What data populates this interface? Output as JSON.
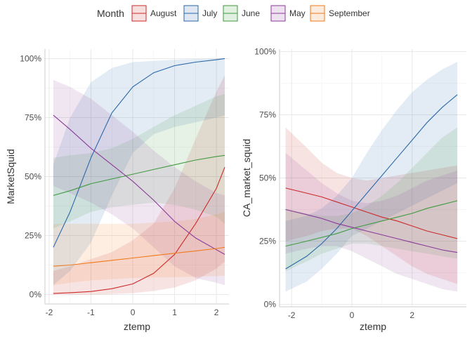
{
  "legend": {
    "title": "Month",
    "entries": [
      {
        "name": "August",
        "color": "#cc2a2a"
      },
      {
        "name": "July",
        "color": "#2a68a8"
      },
      {
        "name": "June",
        "color": "#3f9a3f"
      },
      {
        "name": "May",
        "color": "#8a3b9a"
      },
      {
        "name": "September",
        "color": "#f07a1a"
      }
    ]
  },
  "chart_data": [
    {
      "type": "line",
      "xlabel": "ztemp",
      "ylabel": "MarketSquid",
      "xlim": [
        -2.1,
        2.3
      ],
      "ylim": [
        -0.04,
        1.04
      ],
      "xticks": [
        -2,
        -1,
        0,
        1,
        2
      ],
      "xtick_labels": [
        "-2",
        "-1",
        "0",
        "1",
        "2"
      ],
      "yticks": [
        0,
        0.25,
        0.5,
        0.75,
        1.0
      ],
      "ytick_labels": [
        "0%",
        "25%",
        "50%",
        "75%",
        "100%"
      ],
      "grid": true,
      "x": [
        -1.9,
        -1.5,
        -1.0,
        -0.5,
        0.0,
        0.5,
        1.0,
        1.5,
        2.0,
        2.2
      ],
      "series": [
        {
          "name": "August",
          "color": "#cc2a2a",
          "values": [
            0.005,
            0.008,
            0.013,
            0.025,
            0.045,
            0.09,
            0.17,
            0.3,
            0.45,
            0.54
          ],
          "lower": [
            0.0,
            0.0,
            0.0,
            0.002,
            0.006,
            0.015,
            0.03,
            0.06,
            0.11,
            0.14
          ],
          "upper": [
            0.1,
            0.12,
            0.15,
            0.18,
            0.23,
            0.3,
            0.45,
            0.66,
            0.86,
            0.93
          ]
        },
        {
          "name": "July",
          "color": "#2a68a8",
          "values": [
            0.2,
            0.35,
            0.58,
            0.77,
            0.88,
            0.94,
            0.97,
            0.985,
            0.995,
            1.0
          ],
          "lower": [
            0.04,
            0.1,
            0.22,
            0.42,
            0.6,
            0.68,
            0.71,
            0.73,
            0.75,
            0.76
          ],
          "upper": [
            0.55,
            0.75,
            0.9,
            0.96,
            0.985,
            0.99,
            0.995,
            0.998,
            1.0,
            1.0
          ]
        },
        {
          "name": "June",
          "color": "#3f9a3f",
          "values": [
            0.42,
            0.44,
            0.47,
            0.49,
            0.51,
            0.53,
            0.55,
            0.57,
            0.585,
            0.59
          ],
          "lower": [
            0.28,
            0.31,
            0.35,
            0.37,
            0.38,
            0.39,
            0.38,
            0.36,
            0.33,
            0.3
          ],
          "upper": [
            0.58,
            0.59,
            0.6,
            0.62,
            0.66,
            0.71,
            0.76,
            0.8,
            0.84,
            0.85
          ]
        },
        {
          "name": "May",
          "color": "#8a3b9a",
          "values": [
            0.76,
            0.7,
            0.62,
            0.55,
            0.48,
            0.4,
            0.31,
            0.24,
            0.19,
            0.17
          ],
          "lower": [
            0.46,
            0.43,
            0.39,
            0.34,
            0.28,
            0.2,
            0.12,
            0.07,
            0.05,
            0.04
          ],
          "upper": [
            0.91,
            0.88,
            0.83,
            0.76,
            0.69,
            0.61,
            0.54,
            0.48,
            0.43,
            0.42
          ]
        },
        {
          "name": "September",
          "color": "#f07a1a",
          "values": [
            0.12,
            0.125,
            0.135,
            0.145,
            0.155,
            0.165,
            0.175,
            0.185,
            0.195,
            0.2
          ],
          "lower": [
            0.04,
            0.05,
            0.06,
            0.065,
            0.07,
            0.072,
            0.074,
            0.076,
            0.078,
            0.08
          ],
          "upper": [
            0.3,
            0.3,
            0.3,
            0.3,
            0.3,
            0.305,
            0.31,
            0.32,
            0.34,
            0.35
          ]
        }
      ]
    },
    {
      "type": "line",
      "xlabel": "ztemp",
      "ylabel": "CA_market_squid",
      "xlim": [
        -2.4,
        3.8
      ],
      "ylim": [
        -0.01,
        1.01
      ],
      "xticks": [
        -2,
        0,
        2
      ],
      "xtick_labels": [
        "-2",
        "0",
        "2"
      ],
      "yticks": [
        0,
        0.25,
        0.5,
        0.75,
        1.0
      ],
      "ytick_labels": [
        "0%",
        "25%",
        "50%",
        "75%",
        "100%"
      ],
      "grid": true,
      "x": [
        -2.2,
        -1.5,
        -1.0,
        -0.5,
        0.0,
        0.5,
        1.0,
        1.5,
        2.0,
        2.5,
        3.0,
        3.5
      ],
      "series": [
        {
          "name": "August",
          "color": "#cc2a2a",
          "values": [
            0.46,
            0.44,
            0.425,
            0.405,
            0.385,
            0.365,
            0.345,
            0.33,
            0.31,
            0.29,
            0.275,
            0.26
          ],
          "lower": [
            0.25,
            0.27,
            0.29,
            0.3,
            0.3,
            0.27,
            0.23,
            0.19,
            0.15,
            0.12,
            0.1,
            0.08
          ],
          "upper": [
            0.7,
            0.62,
            0.56,
            0.52,
            0.5,
            0.49,
            0.5,
            0.51,
            0.52,
            0.53,
            0.54,
            0.55
          ]
        },
        {
          "name": "July",
          "color": "#2a68a8",
          "values": [
            0.14,
            0.19,
            0.24,
            0.3,
            0.37,
            0.44,
            0.51,
            0.58,
            0.65,
            0.72,
            0.78,
            0.83
          ],
          "lower": [
            0.05,
            0.09,
            0.14,
            0.2,
            0.27,
            0.3,
            0.33,
            0.36,
            0.39,
            0.42,
            0.45,
            0.48
          ],
          "upper": [
            0.33,
            0.35,
            0.38,
            0.43,
            0.5,
            0.6,
            0.69,
            0.77,
            0.84,
            0.89,
            0.93,
            0.96
          ]
        },
        {
          "name": "June",
          "color": "#3f9a3f",
          "values": [
            0.23,
            0.25,
            0.265,
            0.28,
            0.3,
            0.315,
            0.33,
            0.345,
            0.36,
            0.38,
            0.395,
            0.41
          ],
          "lower": [
            0.13,
            0.17,
            0.2,
            0.22,
            0.24,
            0.24,
            0.23,
            0.22,
            0.21,
            0.2,
            0.19,
            0.18
          ],
          "upper": [
            0.38,
            0.36,
            0.35,
            0.35,
            0.36,
            0.39,
            0.43,
            0.48,
            0.54,
            0.6,
            0.66,
            0.7
          ]
        },
        {
          "name": "May",
          "color": "#8a3b9a",
          "values": [
            0.375,
            0.355,
            0.34,
            0.32,
            0.305,
            0.29,
            0.275,
            0.26,
            0.245,
            0.23,
            0.215,
            0.205
          ],
          "lower": [
            0.2,
            0.22,
            0.23,
            0.23,
            0.21,
            0.18,
            0.15,
            0.12,
            0.1,
            0.08,
            0.06,
            0.05
          ],
          "upper": [
            0.6,
            0.53,
            0.48,
            0.44,
            0.41,
            0.4,
            0.41,
            0.43,
            0.46,
            0.49,
            0.51,
            0.53
          ]
        }
      ]
    }
  ]
}
